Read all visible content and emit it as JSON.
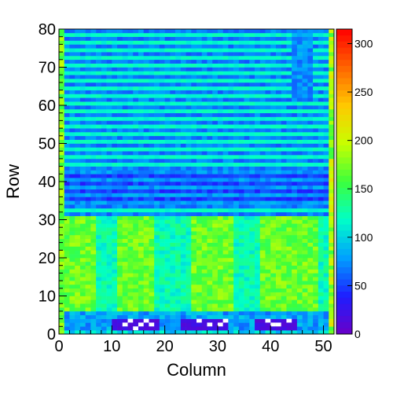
{
  "chart_data": {
    "type": "heatmap",
    "title": "",
    "xlabel": "Column",
    "ylabel": "Row",
    "xlim": [
      0,
      52
    ],
    "ylim": [
      0,
      80
    ],
    "zlim": [
      0,
      315
    ],
    "x_ticks": [
      "0",
      "10",
      "20",
      "30",
      "40",
      "50"
    ],
    "y_ticks": [
      "0",
      "10",
      "20",
      "30",
      "40",
      "50",
      "60",
      "70",
      "80"
    ],
    "colorbar_ticks": [
      "0",
      "50",
      "100",
      "150",
      "200",
      "250",
      "300"
    ],
    "colormap": [
      "#6a00c8",
      "#1e1eff",
      "#00a0ff",
      "#00ffc8",
      "#3cff3c",
      "#c8ff00",
      "#ffc800",
      "#ff6400",
      "#ff0000"
    ],
    "grid": false,
    "cell_rows_upper": "rows 31-80: bands alternating ~55-80 and ~100-125, with a purple-ish region (~35-55) in rows 34-42",
    "cell_rows_lower": "rows 0-30: mostly 110-190, columns 1-6, 11-17, 25-32, 38-48 highest (~160-190)",
    "empty_blocks": [
      {
        "cols": [
          10,
          19
        ],
        "rows": [
          1,
          4
        ]
      },
      {
        "cols": [
          23,
          32
        ],
        "rows": [
          1,
          4
        ]
      },
      {
        "cols": [
          37,
          45
        ],
        "rows": [
          1,
          4
        ]
      }
    ],
    "right_edge_column_values": "column 51 values ~150-220",
    "left_edge_column_values": "column 0 values ~150-200"
  }
}
